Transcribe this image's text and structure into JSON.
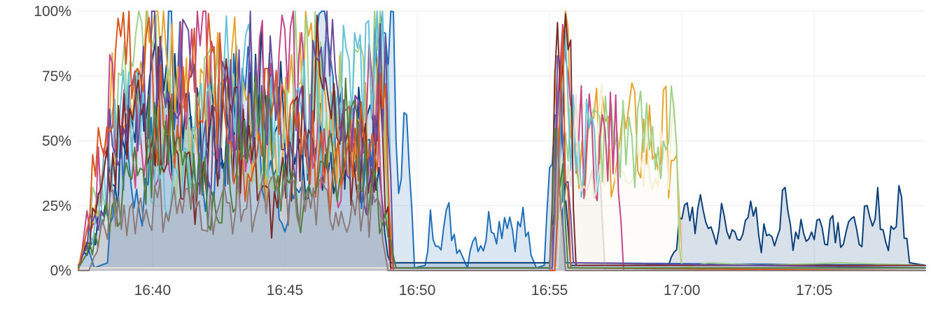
{
  "chart_data": {
    "type": "line",
    "title": "",
    "xlabel": "",
    "ylabel": "",
    "x_unit": "time (minutes after 16:00)",
    "xlim": [
      37.2,
      69.2
    ],
    "ylim": [
      0,
      100
    ],
    "x_ticks": [
      {
        "value": 40,
        "label": "16:40"
      },
      {
        "value": 45,
        "label": "16:45"
      },
      {
        "value": 50,
        "label": "16:50"
      },
      {
        "value": 55,
        "label": "16:55"
      },
      {
        "value": 60,
        "label": "17:00"
      },
      {
        "value": 65,
        "label": "17:05"
      }
    ],
    "y_ticks": [
      {
        "value": 0,
        "label": "0%"
      },
      {
        "value": 25,
        "label": "25%"
      },
      {
        "value": 50,
        "label": "50%"
      },
      {
        "value": 75,
        "label": "75%"
      },
      {
        "value": 100,
        "label": "100%"
      }
    ],
    "grid": true,
    "legend": "none",
    "series": [
      {
        "color": "#1f6fba",
        "fill": true,
        "points": [
          [
            37.2,
            1
          ],
          [
            37.5,
            11
          ],
          [
            37.8,
            1
          ],
          [
            38.3,
            3
          ],
          [
            38.7,
            60
          ],
          [
            39.5,
            20
          ],
          [
            40.5,
            90
          ],
          [
            42,
            30
          ],
          [
            43.5,
            75
          ],
          [
            45,
            15
          ],
          [
            46.5,
            80
          ],
          [
            48,
            40
          ],
          [
            48.9,
            100
          ],
          [
            49.3,
            52
          ],
          [
            49.6,
            51
          ],
          [
            49.9,
            1
          ],
          [
            50.3,
            2
          ],
          [
            50.5,
            18
          ],
          [
            50.9,
            14
          ],
          [
            51.2,
            20
          ],
          [
            51.6,
            8
          ],
          [
            51.9,
            1
          ],
          [
            52.1,
            14
          ],
          [
            52.5,
            10
          ],
          [
            52.8,
            22
          ],
          [
            53.1,
            17
          ],
          [
            53.4,
            25
          ],
          [
            53.7,
            13
          ],
          [
            54.0,
            20
          ],
          [
            54.3,
            6
          ],
          [
            54.5,
            1
          ],
          [
            54.8,
            2
          ],
          [
            55.3,
            85
          ],
          [
            55.6,
            3
          ],
          [
            69.2,
            2
          ]
        ]
      },
      {
        "color": "#0b3f7a",
        "fill": true,
        "points": [
          [
            37.2,
            2
          ],
          [
            38.8,
            40
          ],
          [
            40,
            65
          ],
          [
            42,
            50
          ],
          [
            44,
            70
          ],
          [
            46,
            45
          ],
          [
            48,
            60
          ],
          [
            49,
            3
          ],
          [
            55,
            3
          ],
          [
            55.4,
            70
          ],
          [
            55.8,
            2
          ],
          [
            59.5,
            2
          ],
          [
            60,
            18
          ],
          [
            60.3,
            24
          ],
          [
            60.6,
            20
          ],
          [
            60.9,
            22
          ],
          [
            61.2,
            13
          ],
          [
            61.5,
            20
          ],
          [
            61.8,
            12
          ],
          [
            62.1,
            19
          ],
          [
            62.4,
            14
          ],
          [
            62.7,
            22
          ],
          [
            63.0,
            11
          ],
          [
            63.3,
            18
          ],
          [
            63.6,
            15
          ],
          [
            63.9,
            25
          ],
          [
            64.2,
            13
          ],
          [
            64.5,
            20
          ],
          [
            64.8,
            12
          ],
          [
            65.1,
            18
          ],
          [
            65.4,
            16
          ],
          [
            65.7,
            22
          ],
          [
            66.0,
            14
          ],
          [
            66.3,
            20
          ],
          [
            66.6,
            12
          ],
          [
            66.9,
            19
          ],
          [
            67.2,
            14
          ],
          [
            67.5,
            28
          ],
          [
            67.7,
            10
          ],
          [
            68.0,
            18
          ],
          [
            68.3,
            26
          ],
          [
            68.6,
            3
          ],
          [
            69.2,
            2
          ]
        ]
      },
      {
        "color": "#e6a52c",
        "fill": false,
        "points": [
          [
            37.2,
            0
          ],
          [
            38.8,
            75
          ],
          [
            40.2,
            95
          ],
          [
            41.5,
            55
          ],
          [
            43,
            88
          ],
          [
            44.5,
            35
          ],
          [
            46,
            90
          ],
          [
            47.5,
            45
          ],
          [
            48.8,
            70
          ],
          [
            49.1,
            0
          ],
          [
            55,
            0
          ],
          [
            55.3,
            80
          ],
          [
            55.6,
            99
          ],
          [
            56.0,
            50
          ],
          [
            57,
            50
          ],
          [
            58,
            51
          ],
          [
            59,
            50
          ],
          [
            59.7,
            51
          ],
          [
            60,
            1
          ],
          [
            69.2,
            1
          ]
        ]
      },
      {
        "color": "#f4efd2",
        "fill": true,
        "points": [
          [
            37.2,
            1
          ],
          [
            55.2,
            1
          ],
          [
            55.5,
            60
          ],
          [
            56,
            50
          ],
          [
            57.3,
            50
          ],
          [
            58,
            49
          ],
          [
            59,
            51
          ],
          [
            59.7,
            50
          ],
          [
            60,
            1
          ],
          [
            69.2,
            1
          ]
        ]
      },
      {
        "color": "#9fd18a",
        "fill": false,
        "points": [
          [
            37.2,
            1
          ],
          [
            38.5,
            55
          ],
          [
            39.7,
            85
          ],
          [
            41,
            40
          ],
          [
            42.5,
            75
          ],
          [
            44,
            30
          ],
          [
            45.5,
            80
          ],
          [
            47,
            60
          ],
          [
            48.6,
            78
          ],
          [
            49,
            1
          ],
          [
            55.2,
            1
          ],
          [
            55.5,
            50
          ],
          [
            56,
            48
          ],
          [
            57,
            51
          ],
          [
            58,
            50
          ],
          [
            59,
            50
          ],
          [
            59.7,
            51
          ],
          [
            60,
            1
          ],
          [
            61,
            3
          ],
          [
            63,
            2
          ],
          [
            66,
            3
          ],
          [
            69.2,
            2
          ]
        ]
      },
      {
        "color": "#c6478a",
        "fill": false,
        "points": [
          [
            37.2,
            0
          ],
          [
            38.6,
            70
          ],
          [
            40,
            40
          ],
          [
            41.8,
            88
          ],
          [
            43.3,
            45
          ],
          [
            45,
            92
          ],
          [
            46.8,
            35
          ],
          [
            48.4,
            70
          ],
          [
            49,
            0
          ],
          [
            55.1,
            0
          ],
          [
            55.4,
            75
          ],
          [
            55.8,
            50
          ],
          [
            56.6,
            49
          ],
          [
            57.2,
            48
          ],
          [
            57.6,
            50
          ],
          [
            57.8,
            0
          ],
          [
            69.2,
            0
          ]
        ]
      },
      {
        "color": "#66c2d6",
        "fill": false,
        "points": [
          [
            37.2,
            1
          ],
          [
            39,
            60
          ],
          [
            41,
            30
          ],
          [
            43,
            80
          ],
          [
            45,
            50
          ],
          [
            47,
            70
          ],
          [
            48.8,
            85
          ],
          [
            49.1,
            1
          ],
          [
            55.2,
            1
          ],
          [
            55.5,
            80
          ],
          [
            55.9,
            50
          ],
          [
            56.4,
            51
          ],
          [
            56.9,
            49
          ],
          [
            57.1,
            0
          ],
          [
            69.2,
            1
          ]
        ]
      },
      {
        "color": "#e8ddd6",
        "fill": true,
        "points": [
          [
            37.2,
            1
          ],
          [
            55.3,
            1
          ],
          [
            55.6,
            48
          ],
          [
            56.4,
            47
          ],
          [
            56.8,
            46
          ],
          [
            57.1,
            1
          ],
          [
            69.2,
            1
          ]
        ]
      },
      {
        "color": "#7a2a2a",
        "fill": false,
        "points": [
          [
            37.2,
            1
          ],
          [
            38.5,
            40
          ],
          [
            40,
            70
          ],
          [
            41.5,
            30
          ],
          [
            43,
            62
          ],
          [
            44.5,
            20
          ],
          [
            46,
            75
          ],
          [
            47.5,
            35
          ],
          [
            48.7,
            55
          ],
          [
            49,
            1
          ],
          [
            55,
            1
          ],
          [
            55.3,
            90
          ],
          [
            55.7,
            96
          ],
          [
            56,
            2
          ],
          [
            69.2,
            2
          ]
        ]
      },
      {
        "color": "#6b4b9a",
        "fill": false,
        "points": [
          [
            37.2,
            1
          ],
          [
            38.7,
            55
          ],
          [
            40.5,
            90
          ],
          [
            42,
            45
          ],
          [
            43.8,
            78
          ],
          [
            45.2,
            50
          ],
          [
            46.8,
            85
          ],
          [
            48.3,
            30
          ],
          [
            48.8,
            95
          ],
          [
            49.1,
            1
          ],
          [
            55.1,
            1
          ],
          [
            55.4,
            92
          ],
          [
            55.9,
            3
          ],
          [
            69.2,
            1
          ]
        ]
      },
      {
        "color": "#d9581f",
        "fill": false,
        "points": [
          [
            37.2,
            0
          ],
          [
            38.6,
            85
          ],
          [
            39,
            95
          ],
          [
            40.3,
            55
          ],
          [
            41.9,
            80
          ],
          [
            43.5,
            40
          ],
          [
            45.1,
            70
          ],
          [
            46.7,
            30
          ],
          [
            48.2,
            65
          ],
          [
            48.8,
            50
          ],
          [
            49.1,
            0
          ],
          [
            55.2,
            0
          ],
          [
            55.5,
            88
          ],
          [
            55.8,
            1
          ],
          [
            69.2,
            0
          ]
        ]
      },
      {
        "color": "#4f7f3c",
        "fill": false,
        "points": [
          [
            37.2,
            1
          ],
          [
            38.9,
            30
          ],
          [
            40.6,
            60
          ],
          [
            42.3,
            25
          ],
          [
            44,
            55
          ],
          [
            45.7,
            20
          ],
          [
            47.4,
            58
          ],
          [
            48.9,
            15
          ],
          [
            49.2,
            1
          ],
          [
            55,
            1
          ],
          [
            55.3,
            65
          ],
          [
            55.7,
            1
          ],
          [
            69.2,
            1
          ]
        ]
      },
      {
        "color": "#8b7a78",
        "fill": true,
        "points": [
          [
            37.2,
            0
          ],
          [
            37.6,
            0
          ],
          [
            38.4,
            22
          ],
          [
            40.5,
            26
          ],
          [
            42.5,
            24
          ],
          [
            44.5,
            27
          ],
          [
            46.5,
            25
          ],
          [
            48.5,
            23
          ],
          [
            48.9,
            0
          ],
          [
            55,
            0
          ],
          [
            55.3,
            40
          ],
          [
            55.6,
            0
          ],
          [
            69.2,
            0
          ]
        ]
      }
    ]
  }
}
